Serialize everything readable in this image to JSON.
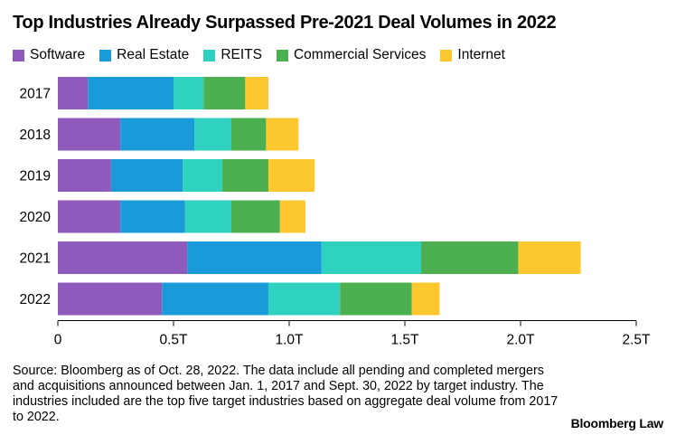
{
  "chart_data": {
    "type": "bar",
    "orientation": "horizontal",
    "stacked": true,
    "title": "Top Industries Already Surpassed Pre-2021 Deal Volumes in 2022",
    "xlabel": "",
    "ylabel": "",
    "xlim": [
      0,
      2.5
    ],
    "x_ticks": [
      {
        "value": 0,
        "label": "0"
      },
      {
        "value": 0.5,
        "label": "0.5T"
      },
      {
        "value": 1.0,
        "label": "1.0T"
      },
      {
        "value": 1.5,
        "label": "1.5T"
      },
      {
        "value": 2.0,
        "label": "2.0T"
      },
      {
        "value": 2.5,
        "label": "2.5T"
      }
    ],
    "categories": [
      "2017",
      "2018",
      "2019",
      "2020",
      "2021",
      "2022"
    ],
    "legend_position": "top-left",
    "series": [
      {
        "name": "Software",
        "color": "#8e5bbd",
        "values": [
          0.13,
          0.27,
          0.23,
          0.27,
          0.56,
          0.45
        ]
      },
      {
        "name": "Real Estate",
        "color": "#1a9ad9",
        "values": [
          0.37,
          0.32,
          0.31,
          0.28,
          0.58,
          0.46
        ]
      },
      {
        "name": "REITS",
        "color": "#2fd1c0",
        "values": [
          0.13,
          0.16,
          0.17,
          0.2,
          0.43,
          0.31
        ]
      },
      {
        "name": "Commercial Services",
        "color": "#4caf50",
        "values": [
          0.18,
          0.15,
          0.2,
          0.21,
          0.42,
          0.31
        ]
      },
      {
        "name": "Internet",
        "color": "#fdc82f",
        "values": [
          0.1,
          0.14,
          0.2,
          0.11,
          0.27,
          0.12
        ]
      }
    ]
  },
  "source_text": "Source: Bloomberg as of Oct. 28, 2022. The data include all pending and completed mergers and acquisitions announced between Jan. 1, 2017 and Sept. 30, 2022 by target industry. The industries included are the top five target industries based on aggregate deal volume from 2017 to 2022.",
  "brand": "Bloomberg Law"
}
